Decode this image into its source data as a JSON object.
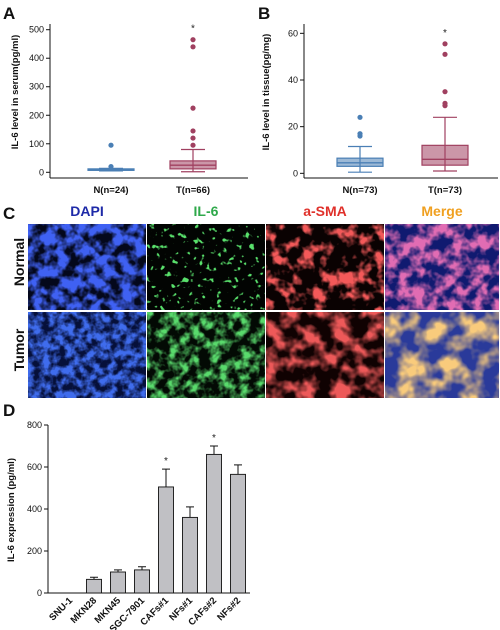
{
  "panels": {
    "A": "A",
    "B": "B",
    "C": "C",
    "D": "D"
  },
  "chart_data": [
    {
      "panel": "A",
      "type": "box",
      "ylabel": "IL-6 level in serum(pg/ml)",
      "ylim": [
        -20,
        520
      ],
      "yticks": [
        0,
        100,
        200,
        300,
        400,
        500
      ],
      "categories": [
        "N(n=24)",
        "T(n=66)"
      ],
      "significance": "*",
      "boxes": [
        {
          "min": 5,
          "q1": 8,
          "median": 10,
          "q3": 12,
          "max": 14,
          "outliers": [
            20,
            95
          ],
          "color": "#4a7fb5"
        },
        {
          "min": 2,
          "q1": 12,
          "median": 25,
          "q3": 40,
          "max": 80,
          "outliers": [
            95,
            120,
            145,
            225,
            440,
            465
          ],
          "color": "#a04060"
        }
      ]
    },
    {
      "panel": "B",
      "type": "box",
      "ylabel": "IL-6 level in tissue(pg/mg)",
      "ylim": [
        -2,
        64
      ],
      "yticks": [
        0,
        20,
        40,
        60
      ],
      "categories": [
        "N(n=73)",
        "T(n=73)"
      ],
      "significance": "*",
      "boxes": [
        {
          "min": 0.5,
          "q1": 3,
          "median": 4.5,
          "q3": 6.5,
          "max": 11.5,
          "outliers": [
            16,
            17,
            24
          ],
          "color": "#4a7fb5"
        },
        {
          "min": 1,
          "q1": 3.5,
          "median": 6,
          "q3": 12,
          "max": 24,
          "outliers": [
            29,
            30,
            35,
            51,
            55.5
          ],
          "color": "#a04060"
        }
      ]
    },
    {
      "panel": "D",
      "type": "bar",
      "ylabel": "IL-6 expression (pg/ml)",
      "ylim": [
        0,
        800
      ],
      "yticks": [
        0,
        200,
        400,
        600,
        800
      ],
      "categories": [
        "SNU-1",
        "MKN28",
        "MKN45",
        "SGC-7901",
        "CAFs#1",
        "NFs#1",
        "CAFs#2",
        "NFs#2"
      ],
      "values": [
        0,
        65,
        100,
        110,
        505,
        360,
        660,
        565
      ],
      "errors": [
        0,
        10,
        10,
        15,
        85,
        50,
        40,
        45
      ],
      "significance": [
        "",
        "",
        "",
        "",
        "*",
        "",
        "*",
        ""
      ],
      "bar_color": "#c0c0c4"
    }
  ],
  "micrograph": {
    "channels": [
      {
        "label": "DAPI",
        "color": "#1e2aa8"
      },
      {
        "label": "IL-6",
        "color": "#2ea84a"
      },
      {
        "label": "a-SMA",
        "color": "#e0302a"
      },
      {
        "label": "Merge",
        "color": "#f0a020"
      }
    ],
    "rows": [
      "Normal",
      "Tumor"
    ]
  }
}
